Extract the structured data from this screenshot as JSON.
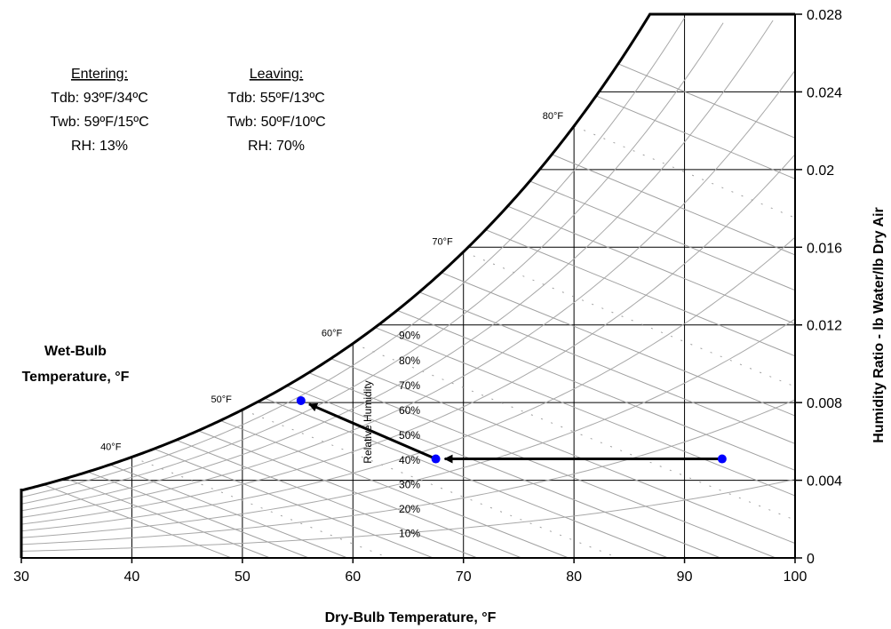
{
  "chart_data": {
    "type": "psychrometric",
    "xlabel": "Dry-Bulb Temperature, °F",
    "ylabel": "Humidity Ratio - lb Water/lb Dry Air",
    "wetbulb_title_line1": "Wet-Bulb",
    "wetbulb_title_line2": "Temperature, °F",
    "rh_title": "Relative Humidity",
    "xlim": [
      30,
      100
    ],
    "ylim": [
      0,
      0.028
    ],
    "x_ticks": [
      30,
      40,
      50,
      60,
      70,
      80,
      90,
      100
    ],
    "y_ticks": [
      {
        "value": 0,
        "label": "0"
      },
      {
        "value": 0.004,
        "label": "0.004"
      },
      {
        "value": 0.008,
        "label": "0.008"
      },
      {
        "value": 0.012,
        "label": "0.012"
      },
      {
        "value": 0.016,
        "label": "0.016"
      },
      {
        "value": 0.02,
        "label": "0.02"
      },
      {
        "value": 0.024,
        "label": "0.024"
      },
      {
        "value": 0.028,
        "label": "0.028"
      }
    ],
    "wet_bulb_labels": [
      {
        "t": 40,
        "label": "40°F"
      },
      {
        "t": 50,
        "label": "50°F"
      },
      {
        "t": 60,
        "label": "60°F"
      },
      {
        "t": 70,
        "label": "70°F"
      },
      {
        "t": 80,
        "label": "80°F"
      }
    ],
    "rh_curves": [
      {
        "rh": 10,
        "label": "10%"
      },
      {
        "rh": 20,
        "label": "20%"
      },
      {
        "rh": 30,
        "label": "30%"
      },
      {
        "rh": 40,
        "label": "40%"
      },
      {
        "rh": 50,
        "label": "50%"
      },
      {
        "rh": 60,
        "label": "60%"
      },
      {
        "rh": 70,
        "label": "70%"
      },
      {
        "rh": 80,
        "label": "80%"
      },
      {
        "rh": 90,
        "label": "90%"
      }
    ],
    "points": [
      {
        "name": "Entering",
        "tdb": 93.4,
        "w": 0.0051
      },
      {
        "name": "Leaving",
        "tdb": 55.3,
        "w": 0.0081
      }
    ],
    "intermediate_point": {
      "tdb": 67.5,
      "w": 0.0051
    },
    "marker_color": "#0000ff",
    "entering": {
      "title": "Entering:",
      "tdb": "Tdb: 93ºF/34ºC",
      "twb": "Twb: 59ºF/15ºC",
      "rh": "RH: 13%"
    },
    "leaving": {
      "title": "Leaving:",
      "tdb": "Tdb: 55ºF/13ºC",
      "twb": "Twb: 50ºF/10ºC",
      "rh": "RH: 70%"
    }
  }
}
